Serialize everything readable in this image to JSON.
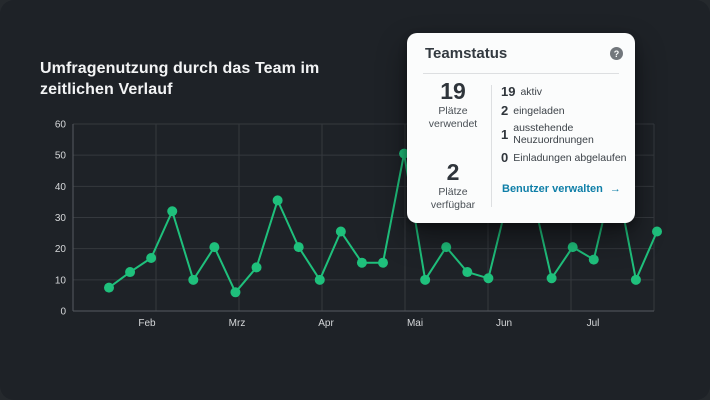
{
  "page": {
    "title": "Umfragenutzung durch das Team im zeitlichen Verlauf"
  },
  "colors": {
    "accent_green": "#1fc07c",
    "link_blue": "#0f7fa8",
    "panel_bg": "#1e2227",
    "card_bg": "#fbfcfc",
    "gridline": "#35393e",
    "axis": "#565b60",
    "tick_label": "#d6d8da"
  },
  "chart_data": {
    "type": "line",
    "title": "Umfragenutzung durch das Team im zeitlichen Verlauf",
    "x_tick_labels": [
      "Feb",
      "Mrz",
      "Apr",
      "Mai",
      "Jun",
      "Jul"
    ],
    "y_ticks": [
      0,
      10,
      20,
      30,
      40,
      50,
      60
    ],
    "ylim": [
      0,
      60
    ],
    "grid": true,
    "legend": "none",
    "line_color": "#1fc07c",
    "series": [
      {
        "name": "Umfragenutzung",
        "values": [
          7.5,
          12.5,
          17,
          32,
          10,
          20.5,
          6,
          14,
          35.5,
          20.5,
          10,
          25.5,
          15.5,
          15.5,
          50.5,
          10,
          20.5,
          12.5,
          10.5,
          38,
          40,
          10.5,
          20.5,
          16.5,
          45,
          10,
          25.5
        ]
      }
    ]
  },
  "card": {
    "title": "Teamstatus",
    "help_glyph": "?",
    "seats_used": {
      "value": "19",
      "label": "Plätze verwendet"
    },
    "stats": [
      {
        "value": "19",
        "label": "aktiv"
      },
      {
        "value": "2",
        "label": "eingeladen"
      },
      {
        "value": "1",
        "label": "ausstehende Neuzuordnungen"
      },
      {
        "value": "0",
        "label": "Einladungen abgelaufen"
      }
    ],
    "seats_available": {
      "value": "2",
      "label": "Plätze verfügbar"
    },
    "manage_link": {
      "label": "Benutzer verwalten",
      "arrow": "→"
    }
  }
}
